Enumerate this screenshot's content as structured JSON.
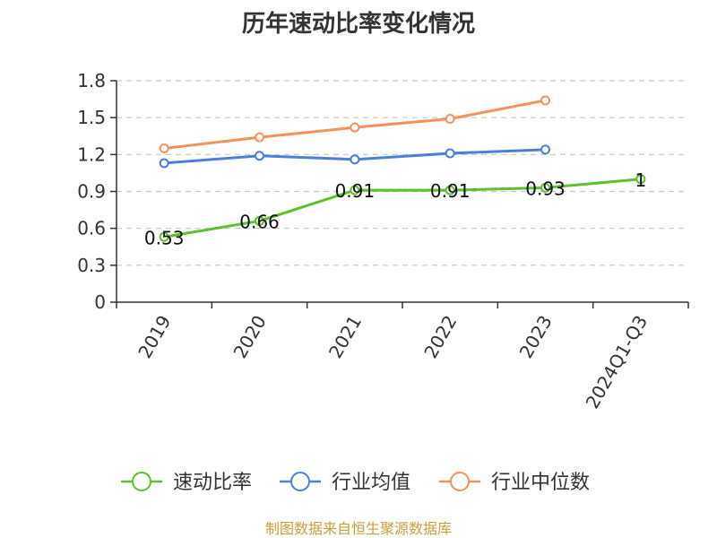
{
  "chart_data": {
    "type": "line",
    "title": "历年速动比率变化情况",
    "categories": [
      "2019",
      "2020",
      "2021",
      "2022",
      "2023",
      "2024Q1-Q3"
    ],
    "ylim": [
      0,
      1.8
    ],
    "yticks": [
      "0",
      "0.3",
      "0.6",
      "0.9",
      "1.2",
      "1.5",
      "1.8"
    ],
    "grid": "horizontal-dashed",
    "legend_position": "bottom",
    "series": [
      {
        "name": "速动比率",
        "color": "#5cc12a",
        "values": [
          0.53,
          0.66,
          0.91,
          0.91,
          0.93,
          1
        ],
        "labels": [
          "0.53",
          "0.66",
          "0.91",
          "0.91",
          "0.93",
          "1"
        ]
      },
      {
        "name": "行业均值",
        "color": "#4a7fdc",
        "values": [
          1.13,
          1.19,
          1.16,
          1.21,
          1.24,
          null
        ]
      },
      {
        "name": "行业中位数",
        "color": "#f5915a",
        "values": [
          1.25,
          1.34,
          1.42,
          1.49,
          1.64,
          null
        ]
      }
    ]
  },
  "source": "制图数据来自恒生聚源数据库"
}
